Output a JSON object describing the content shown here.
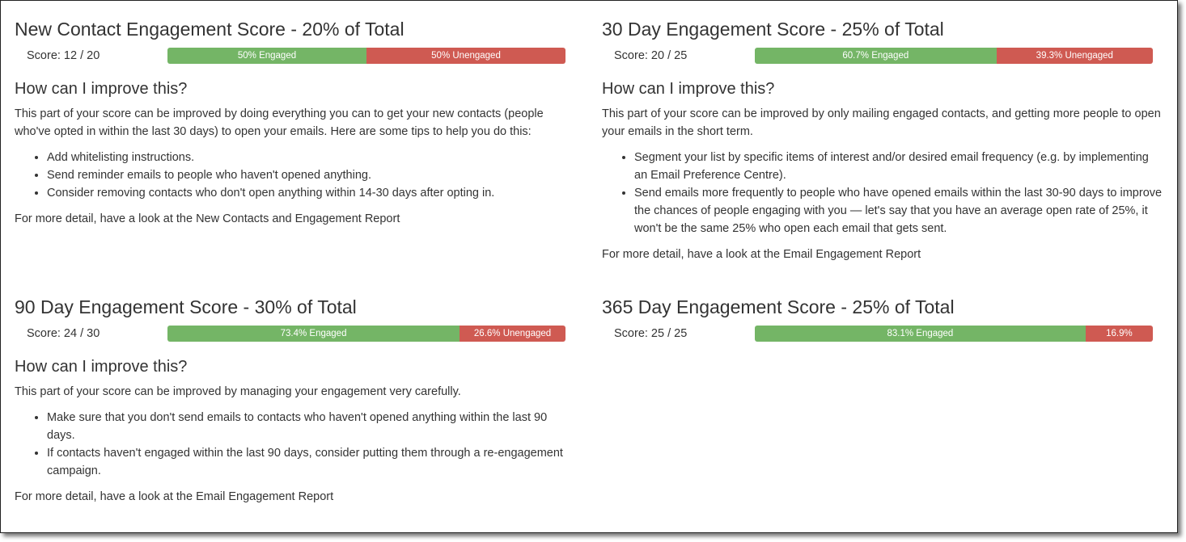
{
  "panels": [
    {
      "title": "New Contact Engagement Score - 20% of Total",
      "score": "Score: 12 / 20",
      "bar": {
        "engaged": {
          "value": 50,
          "label": "50% Engaged"
        },
        "unengaged": {
          "value": 50,
          "label": "50% Unengaged"
        }
      },
      "heading": "How can I improve this?",
      "paragraph": "This part of your score can be improved by doing everything you can to get your new contacts (people who've opted in within the last 30 days) to open your emails. Here are some tips to help you do this:",
      "bullets": [
        "Add whitelisting instructions.",
        "Send reminder emails to people who haven't opened anything.",
        "Consider removing contacts who don't open anything within 14-30 days after opting in."
      ],
      "footer": "For more detail, have a look at the New Contacts and Engagement Report"
    },
    {
      "title": "30 Day Engagement Score - 25% of Total",
      "score": "Score: 20 / 25",
      "bar": {
        "engaged": {
          "value": 60.7,
          "label": "60.7% Engaged"
        },
        "unengaged": {
          "value": 39.3,
          "label": "39.3% Unengaged"
        }
      },
      "heading": "How can I improve this?",
      "paragraph": "This part of your score can be improved by only mailing engaged contacts, and getting more people to open your emails in the short term.",
      "bullets": [
        "Segment your list by specific items of interest and/or desired email frequency (e.g. by implementing an Email Preference Centre).",
        "Send emails more frequently to people who have opened emails within the last 30-90 days to improve the chances of people engaging with you — let's say that you have an average open rate of 25%, it won't be the same 25% who open each email that gets sent."
      ],
      "footer": "For more detail, have a look at the Email Engagement Report"
    },
    {
      "title": "90 Day Engagement Score - 30% of Total",
      "score": "Score: 24 / 30",
      "bar": {
        "engaged": {
          "value": 73.4,
          "label": "73.4% Engaged"
        },
        "unengaged": {
          "value": 26.6,
          "label": "26.6% Unengaged"
        }
      },
      "heading": "How can I improve this?",
      "paragraph": "This part of your score can be improved by managing your engagement very carefully.",
      "bullets": [
        "Make sure that you don't send emails to contacts who haven't opened anything within the last 90 days.",
        "If contacts haven't engaged within the last 90 days, consider putting them through a re-engagement campaign."
      ],
      "footer": "For more detail, have a look at the Email Engagement Report"
    },
    {
      "title": "365 Day Engagement Score - 25% of Total",
      "score": "Score: 25 / 25",
      "bar": {
        "engaged": {
          "value": 83.1,
          "label": "83.1% Engaged"
        },
        "unengaged": {
          "value": 16.9,
          "label": "16.9%"
        }
      }
    }
  ]
}
